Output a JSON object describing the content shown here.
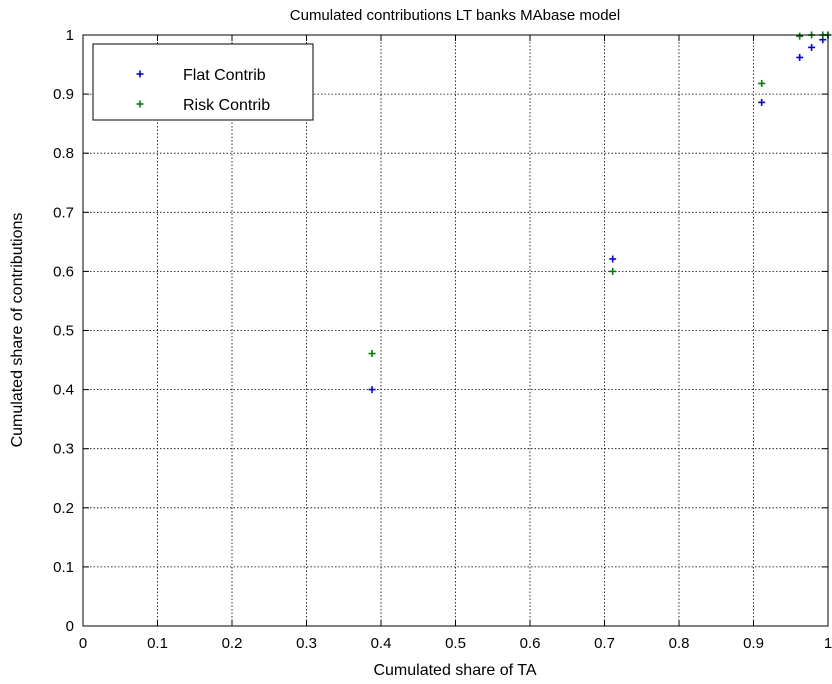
{
  "chart_data": {
    "type": "scatter",
    "title": "Cumulated contributions LT banks MAbase model",
    "xlabel": "Cumulated share of TA",
    "ylabel": "Cumulated share of contributions",
    "xlim": [
      0,
      1
    ],
    "ylim": [
      0,
      1
    ],
    "xticks": [
      "0",
      "0.1",
      "0.2",
      "0.3",
      "0.4",
      "0.5",
      "0.6",
      "0.7",
      "0.8",
      "0.9",
      "1"
    ],
    "yticks": [
      "0",
      "0.1",
      "0.2",
      "0.3",
      "0.4",
      "0.5",
      "0.6",
      "0.7",
      "0.8",
      "0.9",
      "1"
    ],
    "grid": true,
    "legend_position": "top-left",
    "series": [
      {
        "name": "Flat Contrib",
        "color": "#0000ff",
        "marker": "plus",
        "points": [
          [
            0.388,
            0.4
          ],
          [
            0.711,
            0.621
          ],
          [
            0.911,
            0.886
          ],
          [
            0.962,
            0.962
          ],
          [
            0.978,
            0.979
          ],
          [
            0.993,
            0.992
          ],
          [
            1.0,
            1.0
          ]
        ]
      },
      {
        "name": "Risk Contrib",
        "color": "#008000",
        "marker": "plus",
        "points": [
          [
            0.388,
            0.461
          ],
          [
            0.711,
            0.6
          ],
          [
            0.911,
            0.918
          ],
          [
            0.962,
            0.998
          ],
          [
            0.978,
            1.0
          ],
          [
            0.993,
            1.0
          ],
          [
            1.0,
            1.0
          ]
        ]
      }
    ]
  }
}
